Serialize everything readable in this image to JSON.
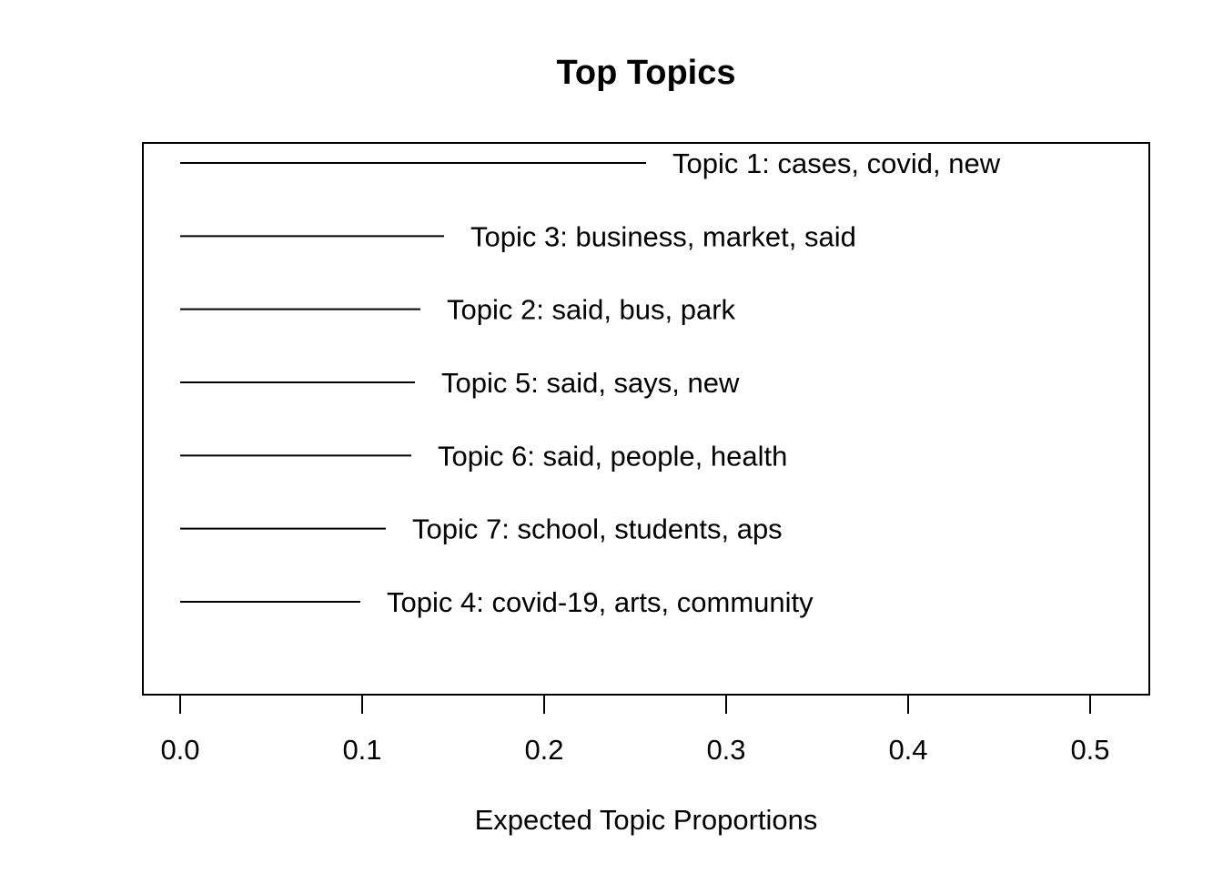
{
  "chart_data": {
    "type": "bar",
    "title": "Top Topics",
    "xlabel": "Expected Topic Proportions",
    "ylabel": "",
    "xlim": [
      0,
      0.5
    ],
    "xticks": [
      "0.0",
      "0.1",
      "0.2",
      "0.3",
      "0.4",
      "0.5"
    ],
    "grid": false,
    "orientation": "horizontal",
    "categories": [
      "Topic 1: cases, covid, new",
      "Topic 3: business, market, said",
      "Topic 2: said, bus, park",
      "Topic 5: said, says, new",
      "Topic 6: said, people, health",
      "Topic 7: school, students, aps",
      "Topic 4: covid-19, arts, community"
    ],
    "values": [
      0.256,
      0.145,
      0.132,
      0.129,
      0.127,
      0.113,
      0.099
    ]
  }
}
